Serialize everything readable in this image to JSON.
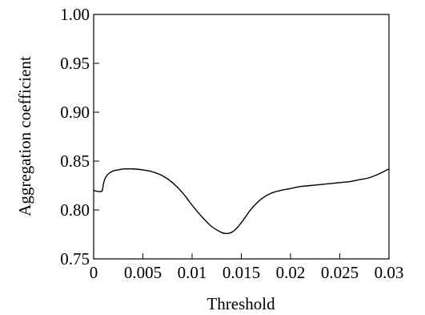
{
  "chart_data": {
    "type": "line",
    "xlabel": "Threshold",
    "ylabel": "Aggregation coefficient",
    "xlim": [
      0,
      0.03
    ],
    "ylim": [
      0.75,
      1.0
    ],
    "x_ticks": [
      0,
      0.005,
      0.01,
      0.015,
      0.02,
      0.025,
      0.03
    ],
    "x_tick_labels": [
      "0",
      "0.005",
      "0.01",
      "0.015",
      "0.02",
      "0.025",
      "0.03"
    ],
    "y_ticks": [
      0.75,
      0.8,
      0.85,
      0.9,
      0.95,
      1.0
    ],
    "y_tick_labels": [
      "0.75",
      "0.80",
      "0.85",
      "0.90",
      "0.95",
      "1.00"
    ],
    "grid": false,
    "series": [
      {
        "color": "#000000",
        "x": [
          0,
          0.0004,
          0.0008,
          0.0009,
          0.001,
          0.0012,
          0.0015,
          0.002,
          0.0025,
          0.003,
          0.0035,
          0.004,
          0.005,
          0.006,
          0.007,
          0.008,
          0.009,
          0.01,
          0.011,
          0.012,
          0.013,
          0.0135,
          0.014,
          0.0145,
          0.015,
          0.0155,
          0.016,
          0.017,
          0.018,
          0.019,
          0.02,
          0.021,
          0.022,
          0.023,
          0.024,
          0.025,
          0.026,
          0.027,
          0.028,
          0.029,
          0.03
        ],
        "y": [
          0.82,
          0.819,
          0.819,
          0.821,
          0.827,
          0.833,
          0.837,
          0.84,
          0.841,
          0.842,
          0.842,
          0.842,
          0.841,
          0.839,
          0.835,
          0.828,
          0.818,
          0.805,
          0.793,
          0.783,
          0.777,
          0.776,
          0.777,
          0.781,
          0.787,
          0.794,
          0.801,
          0.811,
          0.817,
          0.82,
          0.822,
          0.824,
          0.825,
          0.826,
          0.827,
          0.828,
          0.829,
          0.831,
          0.833,
          0.837,
          0.842
        ]
      }
    ]
  }
}
